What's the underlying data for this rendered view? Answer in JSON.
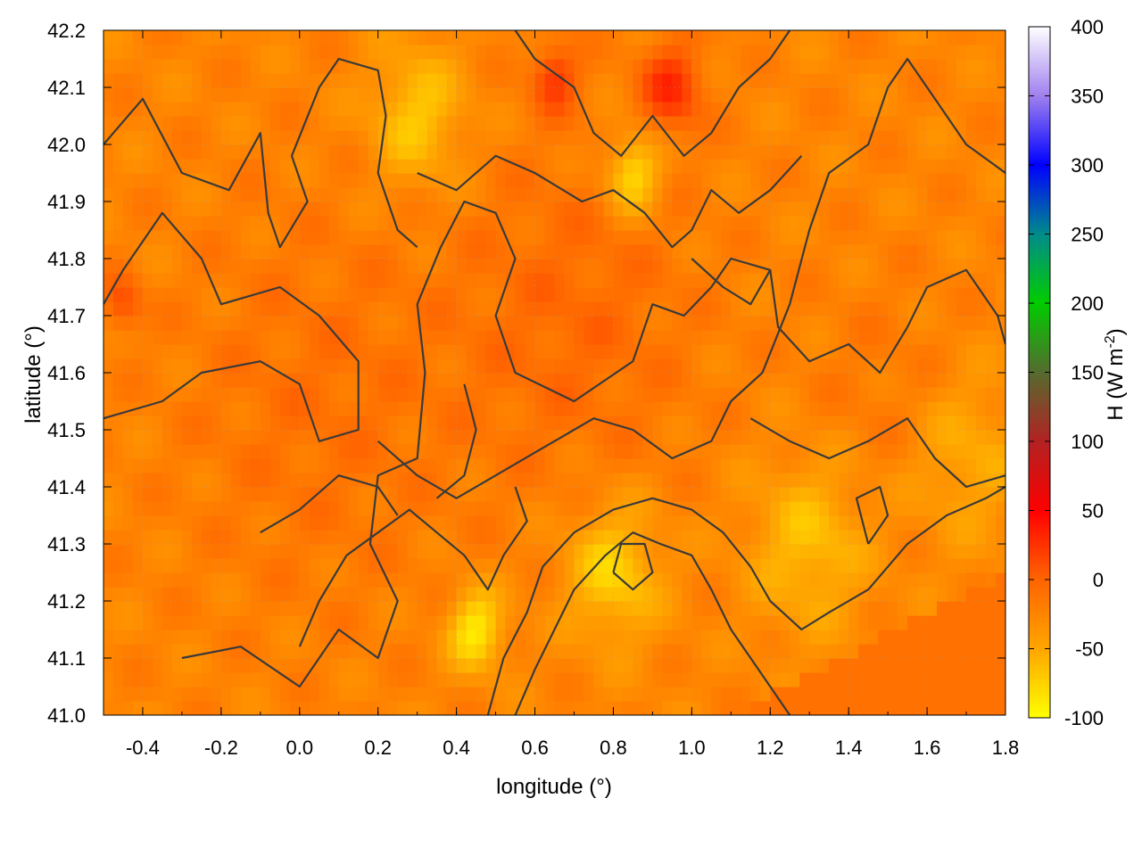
{
  "chart_data": {
    "type": "heatmap",
    "title": "",
    "xlabel": "longitude (°)",
    "ylabel": "latitude (°)",
    "colorbar_label": "H (W m",
    "colorbar_label_sup": "-2",
    "colorbar_label_close": ")",
    "xlim": [
      -0.5,
      1.8
    ],
    "ylim": [
      41.0,
      42.2
    ],
    "x_ticks": [
      -0.4,
      -0.2,
      0.0,
      0.2,
      0.4,
      0.6,
      0.8,
      1.0,
      1.2,
      1.4,
      1.6,
      1.8
    ],
    "x_tick_labels": [
      "-0.4",
      "-0.2",
      "0.0",
      "0.2",
      "0.4",
      "0.6",
      "0.8",
      "1.0",
      "1.2",
      "1.4",
      "1.6",
      "1.8"
    ],
    "y_ticks": [
      41.0,
      41.1,
      41.2,
      41.3,
      41.4,
      41.5,
      41.6,
      41.7,
      41.8,
      41.9,
      42.0,
      42.1,
      42.2
    ],
    "y_tick_labels": [
      "41.0",
      "41.1",
      "41.2",
      "41.3",
      "41.4",
      "41.5",
      "41.6",
      "41.7",
      "41.8",
      "41.9",
      "42.0",
      "42.1",
      "42.2"
    ],
    "colorbar_range": [
      -100,
      400
    ],
    "colorbar_ticks": [
      -100,
      -50,
      0,
      50,
      100,
      150,
      200,
      250,
      300,
      350,
      400
    ],
    "colorbar_tick_labels": [
      "-100",
      "-50",
      "0",
      "50",
      "100",
      "150",
      "200",
      "250",
      "300",
      "350",
      "400"
    ],
    "colormap_stops": [
      {
        "value": -100,
        "color": "#ffff00"
      },
      {
        "value": -50,
        "color": "#ffa500"
      },
      {
        "value": 0,
        "color": "#ff6400"
      },
      {
        "value": 50,
        "color": "#ff0000"
      },
      {
        "value": 100,
        "color": "#b22222"
      },
      {
        "value": 150,
        "color": "#556b2f"
      },
      {
        "value": 200,
        "color": "#00cc00"
      },
      {
        "value": 250,
        "color": "#008b8b"
      },
      {
        "value": 300,
        "color": "#0000ff"
      },
      {
        "value": 350,
        "color": "#a080ee"
      },
      {
        "value": 400,
        "color": "#ffffff"
      }
    ],
    "grid": true,
    "sea_region_value": -10,
    "approx_field": {
      "base_value": -25,
      "features": [
        {
          "lon": 0.05,
          "lat": 41.55,
          "value": -10,
          "spread": 0.35
        },
        {
          "lon": 0.7,
          "lat": 41.7,
          "value": -5,
          "spread": 0.3
        },
        {
          "lon": 0.95,
          "lat": 42.1,
          "value": 25,
          "spread": 0.08
        },
        {
          "lon": 0.65,
          "lat": 42.12,
          "value": 20,
          "spread": 0.06
        },
        {
          "lon": 0.85,
          "lat": 41.95,
          "value": -85,
          "spread": 0.07
        },
        {
          "lon": 0.45,
          "lat": 41.15,
          "value": -90,
          "spread": 0.07
        },
        {
          "lon": 0.8,
          "lat": 41.25,
          "value": -75,
          "spread": 0.12
        },
        {
          "lon": 1.3,
          "lat": 41.3,
          "value": -65,
          "spread": 0.15
        },
        {
          "lon": 0.3,
          "lat": 42.05,
          "value": -70,
          "spread": 0.12
        },
        {
          "lon": 1.7,
          "lat": 41.45,
          "value": -55,
          "spread": 0.15
        },
        {
          "lon": -0.45,
          "lat": 41.72,
          "value": 10,
          "spread": 0.05
        },
        {
          "lon": 1.5,
          "lat": 41.55,
          "value": -15,
          "spread": 0.2
        }
      ]
    },
    "contour_lines": [
      [
        [
          -0.5,
          42.0
        ],
        [
          -0.4,
          42.08
        ],
        [
          -0.3,
          41.95
        ],
        [
          -0.18,
          41.92
        ],
        [
          -0.1,
          42.02
        ],
        [
          -0.08,
          41.88
        ],
        [
          -0.05,
          41.82
        ],
        [
          0.02,
          41.9
        ],
        [
          -0.02,
          41.98
        ],
        [
          0.05,
          42.1
        ],
        [
          0.1,
          42.15
        ],
        [
          0.2,
          42.13
        ],
        [
          0.22,
          42.05
        ],
        [
          0.2,
          41.95
        ],
        [
          0.25,
          41.85
        ],
        [
          0.3,
          41.82
        ]
      ],
      [
        [
          -0.5,
          41.52
        ],
        [
          -0.35,
          41.55
        ],
        [
          -0.25,
          41.6
        ],
        [
          -0.1,
          41.62
        ],
        [
          0.0,
          41.58
        ],
        [
          0.05,
          41.48
        ],
        [
          0.15,
          41.5
        ],
        [
          0.15,
          41.62
        ],
        [
          0.05,
          41.7
        ],
        [
          -0.05,
          41.75
        ],
        [
          -0.2,
          41.72
        ],
        [
          -0.25,
          41.8
        ],
        [
          -0.35,
          41.88
        ],
        [
          -0.45,
          41.78
        ],
        [
          -0.5,
          41.72
        ]
      ],
      [
        [
          -0.3,
          41.1
        ],
        [
          -0.15,
          41.12
        ],
        [
          0.0,
          41.05
        ],
        [
          0.1,
          41.15
        ],
        [
          0.2,
          41.1
        ],
        [
          0.25,
          41.2
        ],
        [
          0.18,
          41.3
        ],
        [
          0.2,
          41.42
        ],
        [
          0.3,
          41.45
        ],
        [
          0.32,
          41.6
        ],
        [
          0.3,
          41.72
        ],
        [
          0.36,
          41.82
        ],
        [
          0.42,
          41.9
        ],
        [
          0.5,
          41.88
        ],
        [
          0.55,
          41.8
        ],
        [
          0.5,
          41.7
        ],
        [
          0.55,
          41.6
        ],
        [
          0.7,
          41.55
        ],
        [
          0.85,
          41.62
        ],
        [
          0.9,
          41.72
        ],
        [
          0.98,
          41.7
        ],
        [
          1.05,
          41.75
        ],
        [
          1.1,
          41.8
        ],
        [
          1.2,
          41.78
        ],
        [
          1.22,
          41.68
        ],
        [
          1.3,
          41.62
        ],
        [
          1.4,
          41.65
        ],
        [
          1.48,
          41.6
        ],
        [
          1.55,
          41.68
        ],
        [
          1.6,
          41.75
        ],
        [
          1.7,
          41.78
        ],
        [
          1.78,
          41.7
        ],
        [
          1.8,
          41.65
        ]
      ],
      [
        [
          0.2,
          41.48
        ],
        [
          0.3,
          41.42
        ],
        [
          0.4,
          41.38
        ],
        [
          0.5,
          41.42
        ],
        [
          0.6,
          41.46
        ],
        [
          0.75,
          41.52
        ],
        [
          0.85,
          41.5
        ],
        [
          0.95,
          41.45
        ],
        [
          1.05,
          41.48
        ],
        [
          1.1,
          41.55
        ],
        [
          1.18,
          41.6
        ],
        [
          1.25,
          41.72
        ],
        [
          1.3,
          41.85
        ],
        [
          1.35,
          41.95
        ],
        [
          1.45,
          42.0
        ],
        [
          1.5,
          42.1
        ],
        [
          1.55,
          42.15
        ],
        [
          1.62,
          42.08
        ],
        [
          1.7,
          42.0
        ],
        [
          1.8,
          41.95
        ]
      ],
      [
        [
          0.55,
          42.2
        ],
        [
          0.6,
          42.15
        ],
        [
          0.7,
          42.1
        ],
        [
          0.75,
          42.02
        ],
        [
          0.82,
          41.98
        ],
        [
          0.9,
          42.05
        ],
        [
          0.98,
          41.98
        ],
        [
          1.05,
          42.02
        ],
        [
          1.12,
          42.1
        ],
        [
          1.2,
          42.15
        ],
        [
          1.25,
          42.2
        ]
      ],
      [
        [
          0.3,
          41.95
        ],
        [
          0.4,
          41.92
        ],
        [
          0.5,
          41.98
        ],
        [
          0.6,
          41.95
        ],
        [
          0.72,
          41.9
        ],
        [
          0.8,
          41.92
        ],
        [
          0.88,
          41.88
        ],
        [
          0.95,
          41.82
        ],
        [
          1.0,
          41.85
        ],
        [
          1.05,
          41.92
        ],
        [
          1.12,
          41.88
        ],
        [
          1.2,
          41.92
        ],
        [
          1.28,
          41.98
        ]
      ],
      [
        [
          0.55,
          41.0
        ],
        [
          0.6,
          41.08
        ],
        [
          0.65,
          41.15
        ],
        [
          0.7,
          41.22
        ],
        [
          0.78,
          41.28
        ],
        [
          0.85,
          41.32
        ],
        [
          0.92,
          41.3
        ],
        [
          1.0,
          41.28
        ],
        [
          1.05,
          41.22
        ],
        [
          1.1,
          41.15
        ],
        [
          1.15,
          41.1
        ],
        [
          1.2,
          41.05
        ],
        [
          1.25,
          41.0
        ]
      ],
      [
        [
          0.48,
          41.0
        ],
        [
          0.52,
          41.1
        ],
        [
          0.58,
          41.18
        ],
        [
          0.62,
          41.26
        ],
        [
          0.7,
          41.32
        ],
        [
          0.8,
          41.36
        ],
        [
          0.9,
          41.38
        ],
        [
          1.0,
          41.36
        ],
        [
          1.08,
          41.32
        ],
        [
          1.15,
          41.26
        ],
        [
          1.2,
          41.2
        ],
        [
          1.28,
          41.15
        ],
        [
          1.35,
          41.18
        ],
        [
          1.45,
          41.22
        ],
        [
          1.55,
          41.3
        ],
        [
          1.65,
          41.35
        ],
        [
          1.75,
          41.38
        ],
        [
          1.8,
          41.4
        ]
      ],
      [
        [
          0.0,
          41.12
        ],
        [
          0.05,
          41.2
        ],
        [
          0.12,
          41.28
        ],
        [
          0.2,
          41.32
        ],
        [
          0.28,
          41.36
        ],
        [
          0.35,
          41.32
        ],
        [
          0.42,
          41.28
        ],
        [
          0.48,
          41.22
        ],
        [
          0.52,
          41.28
        ],
        [
          0.58,
          41.34
        ],
        [
          0.55,
          41.4
        ]
      ],
      [
        [
          1.15,
          41.52
        ],
        [
          1.25,
          41.48
        ],
        [
          1.35,
          41.45
        ],
        [
          1.45,
          41.48
        ],
        [
          1.55,
          41.52
        ],
        [
          1.62,
          41.45
        ],
        [
          1.7,
          41.4
        ],
        [
          1.8,
          41.42
        ]
      ],
      [
        [
          -0.1,
          41.32
        ],
        [
          0.0,
          41.36
        ],
        [
          0.1,
          41.42
        ],
        [
          0.2,
          41.4
        ],
        [
          0.25,
          41.35
        ]
      ],
      [
        [
          0.35,
          41.38
        ],
        [
          0.42,
          41.42
        ],
        [
          0.45,
          41.5
        ],
        [
          0.42,
          41.58
        ]
      ],
      [
        [
          0.8,
          41.25
        ],
        [
          0.85,
          41.22
        ],
        [
          0.9,
          41.25
        ],
        [
          0.88,
          41.3
        ],
        [
          0.82,
          41.3
        ],
        [
          0.8,
          41.25
        ]
      ],
      [
        [
          1.0,
          41.8
        ],
        [
          1.08,
          41.75
        ],
        [
          1.15,
          41.72
        ],
        [
          1.2,
          41.78
        ]
      ],
      [
        [
          1.45,
          41.3
        ],
        [
          1.5,
          41.35
        ],
        [
          1.48,
          41.4
        ],
        [
          1.42,
          41.38
        ],
        [
          1.45,
          41.3
        ]
      ]
    ]
  }
}
